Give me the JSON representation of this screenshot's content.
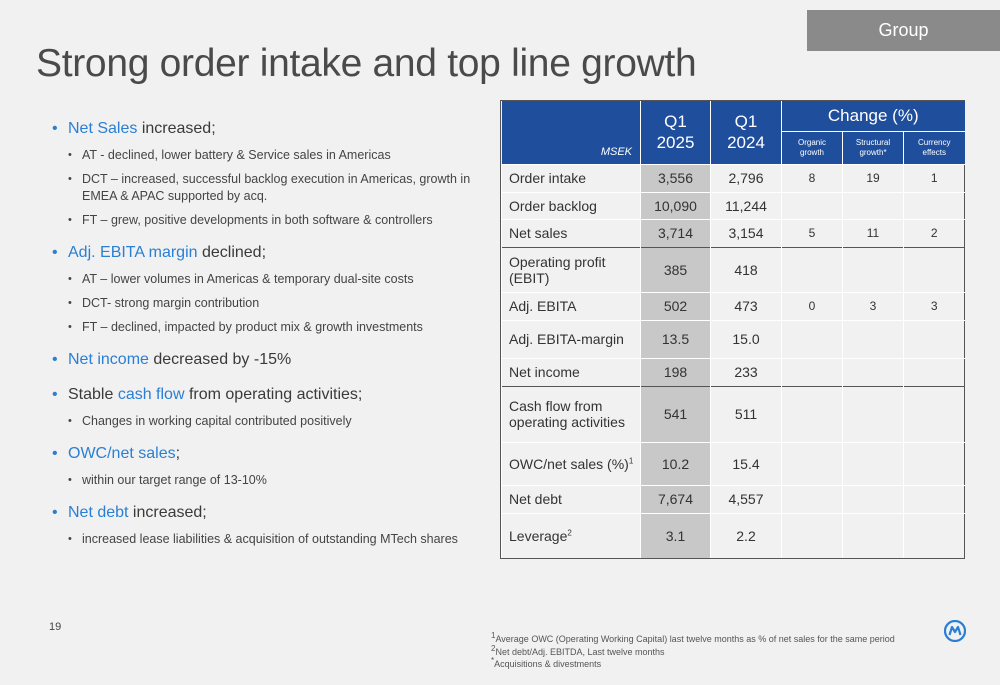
{
  "header": {
    "tab": "Group",
    "title": "Strong order intake and top line growth"
  },
  "bullets": [
    {
      "highlight": "Net Sales",
      "rest": " increased;",
      "subs": [
        "AT -  declined, lower battery & Service sales in Americas",
        "DCT – increased, successful backlog execution in Americas, growth in EMEA & APAC supported by acq.",
        "FT – grew, positive developments in both software & controllers"
      ]
    },
    {
      "highlight": "Adj. EBITA margin",
      "rest": " declined;",
      "subs": [
        "AT – lower volumes in Americas & temporary dual-site costs",
        "DCT- strong margin contribution",
        "FT – declined, impacted by product mix & growth investments"
      ]
    },
    {
      "highlight": "Net income",
      "rest": " decreased by -15%",
      "subs": []
    },
    {
      "pre": "Stable ",
      "highlight": "cash flow",
      "rest": " from operating activities;",
      "subs": [
        "Changes in working capital contributed positively"
      ]
    },
    {
      "highlight": "OWC/net sales",
      "rest": ";",
      "subs": [
        "within our target range of 13-10%"
      ]
    },
    {
      "highlight": "Net debt",
      "rest": " increased;",
      "subs": [
        "increased lease liabilities & acquisition of outstanding MTech shares"
      ]
    }
  ],
  "table": {
    "unit": "MSEK",
    "col_q1_2025": [
      "Q1",
      "2025"
    ],
    "col_q1_2024": [
      "Q1",
      "2024"
    ],
    "change_title": "Change (%)",
    "change_cols": [
      [
        "Organic",
        "growth"
      ],
      [
        "Structural",
        "growth*"
      ],
      [
        "Currency",
        "effects"
      ]
    ],
    "rows": [
      {
        "label": "Order intake",
        "q25": "3,556",
        "q24": "2,796",
        "org": "8",
        "str": "19",
        "cur": "1"
      },
      {
        "label": "Order backlog",
        "q25": "10,090",
        "q24": "11,244",
        "org": "",
        "str": "",
        "cur": ""
      },
      {
        "label": "Net sales",
        "q25": "3,714",
        "q24": "3,154",
        "org": "5",
        "str": "11",
        "cur": "2"
      },
      {
        "label": "Operating profit (EBIT)",
        "q25": "385",
        "q24": "418",
        "org": "",
        "str": "",
        "cur": ""
      },
      {
        "label": "Adj. EBITA",
        "q25": "502",
        "q24": "473",
        "org": "0",
        "str": "3",
        "cur": "3"
      },
      {
        "label": "Adj. EBITA-margin",
        "q25": "13.5",
        "q24": "15.0",
        "org": "",
        "str": "",
        "cur": ""
      },
      {
        "label": "Net income",
        "q25": "198",
        "q24": "233",
        "org": "",
        "str": "",
        "cur": ""
      },
      {
        "label": "Cash flow from operating activities",
        "q25": "541",
        "q24": "511",
        "org": "",
        "str": "",
        "cur": ""
      },
      {
        "label": "OWC/net sales (%)",
        "sup": "1",
        "q25": "10.2",
        "q24": "15.4",
        "org": "",
        "str": "",
        "cur": ""
      },
      {
        "label": "Net debt",
        "q25": "7,674",
        "q24": "4,557",
        "org": "",
        "str": "",
        "cur": ""
      },
      {
        "label": "Leverage",
        "sup": "2",
        "q25": "3.1",
        "q24": "2.2",
        "org": "",
        "str": "",
        "cur": ""
      }
    ]
  },
  "footnotes": [
    {
      "mark": "1",
      "text": "Average OWC (Operating Working Capital) last twelve months as % of net sales for the same period"
    },
    {
      "mark": "2",
      "text": "Net debt/Adj. EBITDA, Last twelve months"
    },
    {
      "mark": "*",
      "text": "Acquisitions & divestments"
    }
  ],
  "page_number": "19",
  "colors": {
    "accent_blue": "#2a7fd4",
    "header_blue": "#1f4e9c",
    "tab_gray": "#8a8a8a",
    "q1_2025_col": "#c8c8c8"
  },
  "logo_icon": "company-logo-icon"
}
